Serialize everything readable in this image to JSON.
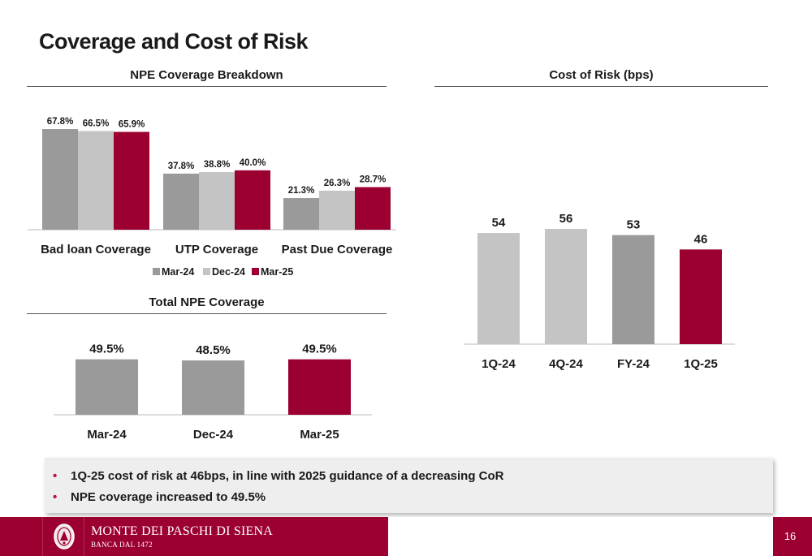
{
  "page": {
    "title": "Coverage and Cost of Risk",
    "page_number": "16"
  },
  "colors": {
    "mar24": "#9a9a9a",
    "dec24": "#c4c4c4",
    "mar25": "#9b0031",
    "accent": "#9b0031"
  },
  "chart_data": [
    {
      "type": "bar",
      "title": "NPE Coverage Breakdown",
      "categories": [
        "Bad loan Coverage",
        "UTP Coverage",
        "Past Due Coverage"
      ],
      "series": [
        {
          "name": "Mar-24",
          "values": [
            67.8,
            37.8,
            21.3
          ],
          "labels": [
            "67.8%",
            "37.8%",
            "21.3%"
          ]
        },
        {
          "name": "Dec-24",
          "values": [
            66.5,
            38.8,
            26.3
          ],
          "labels": [
            "66.5%",
            "38.8%",
            "26.3%"
          ]
        },
        {
          "name": "Mar-25",
          "values": [
            65.9,
            40.0,
            28.7
          ],
          "labels": [
            "65.9%",
            "40.0%",
            "28.7%"
          ]
        }
      ],
      "legend": "bottom",
      "ylim": [
        0,
        70
      ],
      "grid": false
    },
    {
      "type": "bar",
      "title": "Total NPE Coverage",
      "categories": [
        "Mar-24",
        "Dec-24",
        "Mar-25"
      ],
      "values": [
        49.5,
        48.5,
        49.5
      ],
      "labels": [
        "49.5%",
        "48.5%",
        "49.5%"
      ],
      "ylim": [
        0,
        50
      ],
      "grid": false
    },
    {
      "type": "bar",
      "title": "Cost of Risk (bps)",
      "categories": [
        "1Q-24",
        "4Q-24",
        "FY-24",
        "1Q-25"
      ],
      "values": [
        54,
        56,
        53,
        46
      ],
      "labels": [
        "54",
        "56",
        "53",
        "46"
      ],
      "ylim": [
        0,
        56
      ],
      "grid": false
    }
  ],
  "bullets": [
    "1Q-25 cost of risk at 46bps, in line with 2025 guidance of a decreasing CoR",
    "NPE coverage increased to 49.5%"
  ],
  "footer": {
    "brand": "MONTE DEI PASCHI DI SIENA",
    "subtitle": "BANCA DAL 1472",
    "logo_icon": "bank-seal-icon"
  }
}
